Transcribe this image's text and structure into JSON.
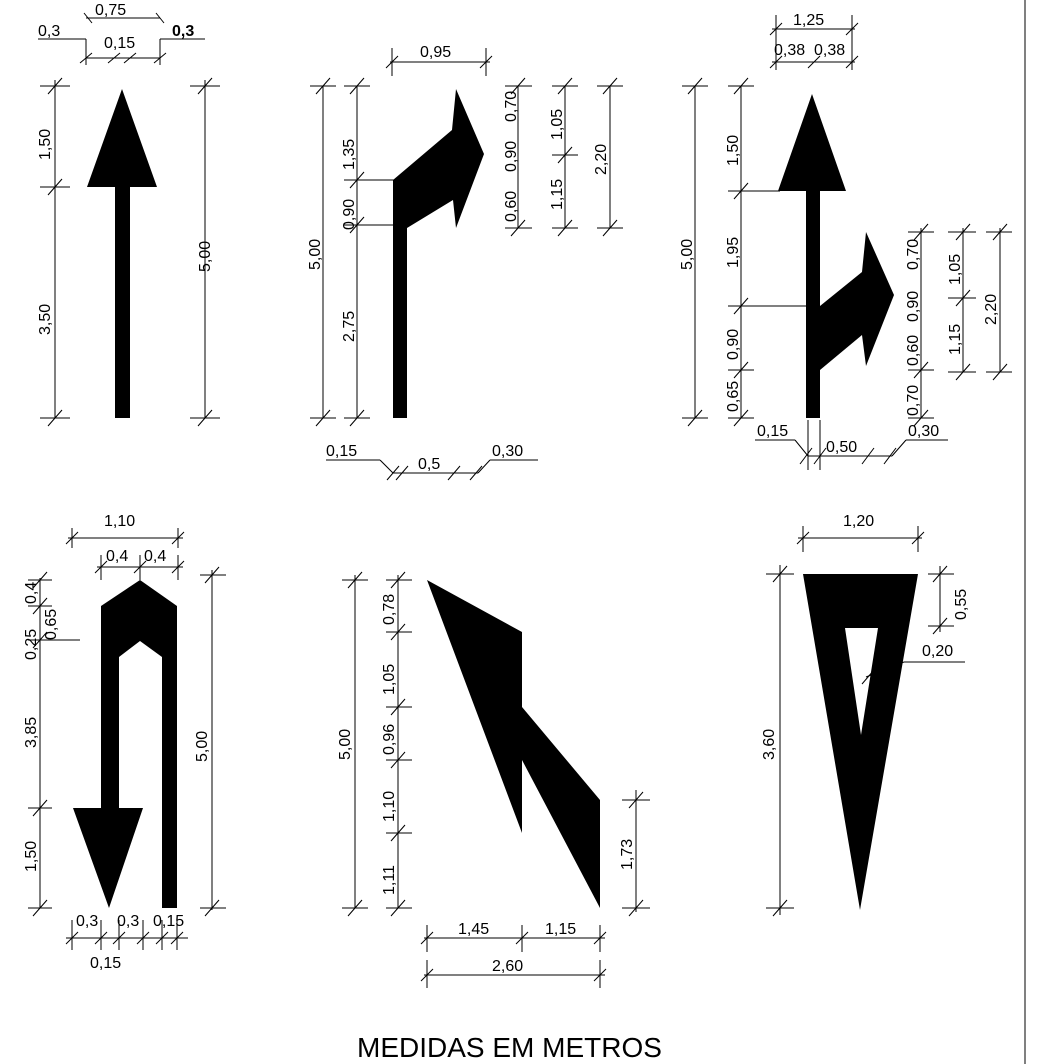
{
  "caption": "MEDIDAS EM METROS",
  "diagrams": {
    "straight_arrow": {
      "width_total": "0,75",
      "left_margin": "0,3",
      "stem_width": "0,15",
      "right_margin": "0,3",
      "head_height": "1,50",
      "stem_height": "3,50",
      "total_height": "5,00"
    },
    "right_turn_arrow": {
      "head_offset": "0,95",
      "total_height": "5,00",
      "upper_height": "1,35",
      "mid_height": "0,90",
      "stem_height": "2,75",
      "h1": "0,70",
      "h2": "0,90",
      "h3": "0,60",
      "h4": "1,05",
      "h5": "1,15",
      "h6": "2,20",
      "bottom_left": "0,15",
      "bottom_mid": "0,5",
      "bottom_right": "0,30"
    },
    "straight_right_arrow": {
      "width_total": "1,25",
      "left_half": "0,38",
      "right_half": "0,38",
      "total_height": "5,00",
      "head_height": "1,50",
      "upper_stem": "1,95",
      "mid_height": "0,90",
      "lower_stem": "0,65",
      "h1": "0,70",
      "h2": "0,90",
      "h3": "0,60",
      "h4": "0,70",
      "h5": "1,05",
      "h6": "1,15",
      "h7": "2,20",
      "bottom_left": "0,15",
      "bottom_mid": "0,50",
      "bottom_right": "0,30"
    },
    "u_turn_arrow": {
      "width_total": "1,10",
      "left_half": "0,4",
      "right_half": "0,4",
      "top_1": "0,4",
      "top_2": "0,25",
      "top_3": "0,65",
      "stem_height": "3,85",
      "head_height": "1,50",
      "total_height": "5,00",
      "bottom_1": "0,3",
      "bottom_2": "0,3",
      "bottom_3": "0,15",
      "bottom_under": "0,15"
    },
    "lane_change_arrow": {
      "total_height": "5,00",
      "v1": "0,78",
      "v2": "1,05",
      "v3": "0,96",
      "v4": "1,10",
      "v5": "1,11",
      "right_height": "1,73",
      "w_left": "1,45",
      "w_right": "1,15",
      "w_total": "2,60"
    },
    "yield_triangle": {
      "width_total": "1,20",
      "total_height": "3,60",
      "top_band": "0,55",
      "border": "0,20"
    }
  }
}
